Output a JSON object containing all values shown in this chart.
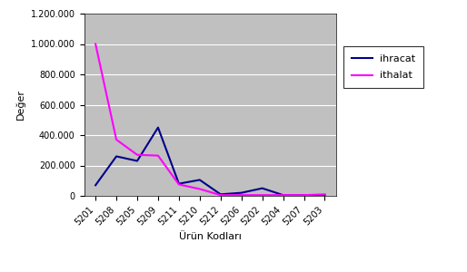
{
  "categories": [
    "5201",
    "5208",
    "5205",
    "5209",
    "5211",
    "5210",
    "5212",
    "5206",
    "5202",
    "5204",
    "5207",
    "5203"
  ],
  "ihracat": [
    70000,
    260000,
    230000,
    450000,
    80000,
    105000,
    10000,
    20000,
    50000,
    5000,
    5000,
    5000
  ],
  "ithalat": [
    1000000,
    370000,
    270000,
    265000,
    75000,
    45000,
    5000,
    5000,
    5000,
    5000,
    5000,
    10000
  ],
  "ihracat_color": "#00008B",
  "ithalat_color": "#FF00FF",
  "bg_color": "#C0C0C0",
  "fig_bg_color": "#ffffff",
  "ylabel": "Değer",
  "xlabel": "Ürün Kodları",
  "ylim": [
    0,
    1200000
  ],
  "yticks": [
    0,
    200000,
    400000,
    600000,
    800000,
    1000000,
    1200000
  ],
  "legend_ihracat": "ihracat",
  "legend_ithalat": "ithalat"
}
